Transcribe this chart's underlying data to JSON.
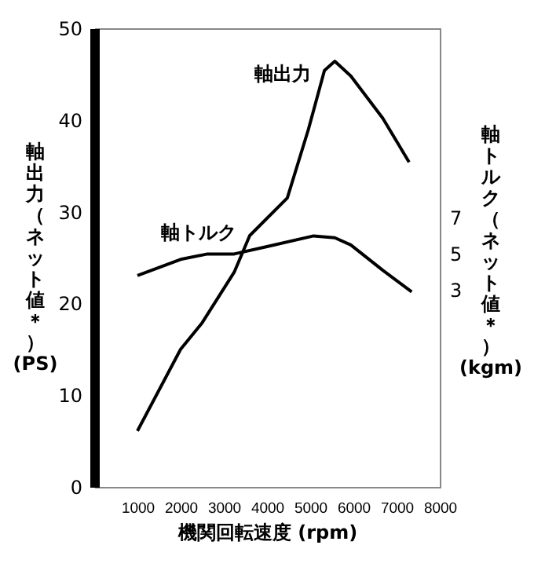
{
  "chart_data": {
    "type": "line",
    "xlabel": "機関回転速度 (rpm)",
    "ylabel": "軸出力（ネット値＊）(PS)",
    "y2label": "軸トルク（ネット値＊）(kgm)",
    "x": [
      1000,
      2000,
      2500,
      3240,
      3600,
      4470,
      4960,
      5330,
      5570,
      5940,
      6680,
      7290
    ],
    "series": [
      {
        "name": "軸出力",
        "color": "#000000",
        "values": [
          6.1,
          15,
          17.9,
          23.4,
          27.4,
          31.5,
          39,
          45.4,
          46.4,
          44.8,
          40.2,
          35.4
        ]
      },
      {
        "name": "軸トルク",
        "color": "#000000",
        "axis": "y2",
        "x": [
          1000,
          2000,
          2620,
          3240,
          3980,
          5080,
          5570,
          5940,
          6680,
          7350
        ],
        "values": [
          3.8,
          4.7,
          5,
          5,
          5.4,
          6,
          5.9,
          5.5,
          4.1,
          2.9
        ]
      }
    ],
    "xlim": [
      0,
      8000
    ],
    "xticks": [
      1000,
      2000,
      3000,
      4000,
      5000,
      6000,
      7000,
      8000
    ],
    "ylim": [
      0,
      50
    ],
    "yticks": [
      0,
      10,
      20,
      30,
      40,
      50
    ],
    "y2lim": [
      -7.9,
      17.5
    ],
    "y2ticks": [
      3,
      5,
      7
    ],
    "grid": false,
    "marker": "none",
    "line_style": "solid"
  }
}
